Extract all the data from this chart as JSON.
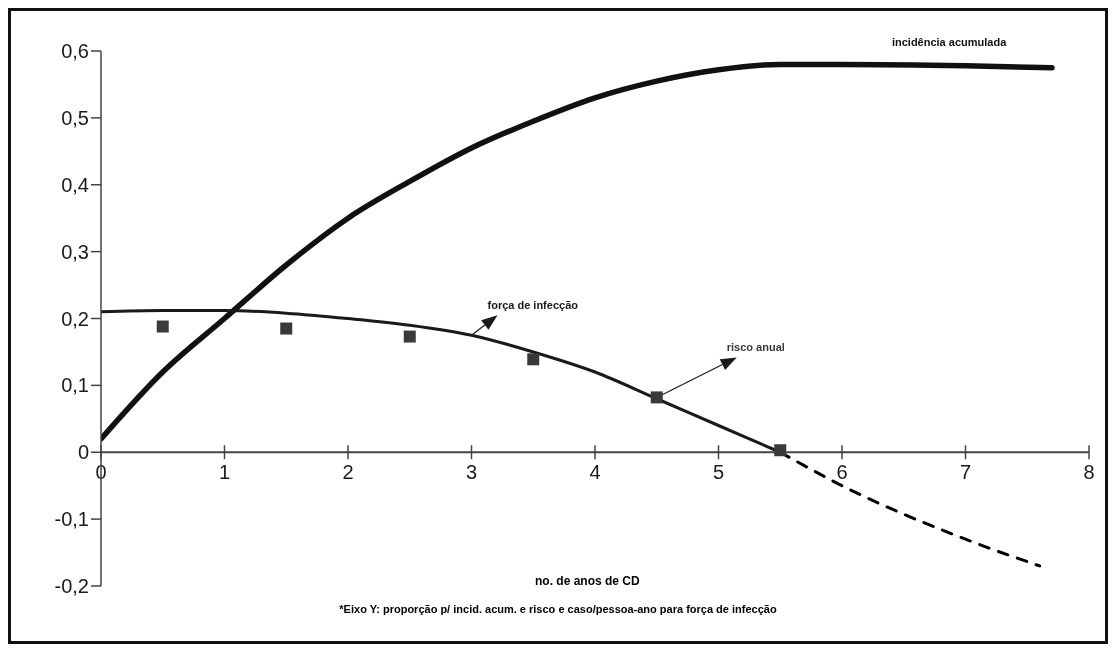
{
  "chart_data": {
    "type": "line",
    "xlabel": "no. de anos de CD",
    "annotations": [
      "*Eixo Y: proporção p/ incid. acum. e risco e caso/pessoa-ano para força de infecção"
    ],
    "xlim": [
      0,
      8
    ],
    "xticks": [
      0,
      1,
      2,
      3,
      4,
      5,
      6,
      7,
      8
    ],
    "ylim": [
      -0.2,
      0.6
    ],
    "yticks": [
      {
        "value": -0.2,
        "label": "-0,2"
      },
      {
        "value": -0.1,
        "label": "-0,1"
      },
      {
        "value": 0,
        "label": "0"
      },
      {
        "value": 0.1,
        "label": "0,1"
      },
      {
        "value": 0.2,
        "label": "0,2"
      },
      {
        "value": 0.3,
        "label": "0,3"
      },
      {
        "value": 0.4,
        "label": "0,4"
      },
      {
        "value": 0.5,
        "label": "0,5"
      },
      {
        "value": 0.6,
        "label": "0,6"
      }
    ],
    "grid": false,
    "legend": false,
    "series": [
      {
        "name": "incidência acumulada",
        "type": "line",
        "color": "#111111",
        "x": [
          0,
          0.5,
          1,
          1.5,
          2,
          2.5,
          3,
          3.5,
          4,
          4.5,
          5,
          5.5,
          6,
          7,
          7.7
        ],
        "values": [
          0.02,
          0.12,
          0.2,
          0.28,
          0.35,
          0.405,
          0.455,
          0.495,
          0.53,
          0.555,
          0.572,
          0.58,
          0.58,
          0.578,
          0.575
        ]
      },
      {
        "name": "força de infecção",
        "type": "line",
        "color": "#1a1a1a",
        "x": [
          0,
          0.5,
          1,
          1.5,
          2,
          2.5,
          3,
          3.5,
          4,
          4.5,
          5,
          5.5
        ],
        "values": [
          0.21,
          0.212,
          0.212,
          0.208,
          0.2,
          0.19,
          0.175,
          0.15,
          0.12,
          0.08,
          0.04,
          0
        ]
      },
      {
        "type": "line",
        "line_style": "dashed",
        "color": "#000000",
        "x": [
          5.5,
          6,
          7,
          7.6
        ],
        "values": [
          0,
          -0.05,
          -0.13,
          -0.17
        ]
      },
      {
        "name": "risco anual",
        "type": "scatter",
        "marker": "square",
        "color": "#3a3a3a",
        "x": [
          0.5,
          1.5,
          2.5,
          3.5,
          4.5,
          5.5
        ],
        "values": [
          0.188,
          0.185,
          0.173,
          0.139,
          0.082,
          0.003
        ]
      }
    ]
  }
}
